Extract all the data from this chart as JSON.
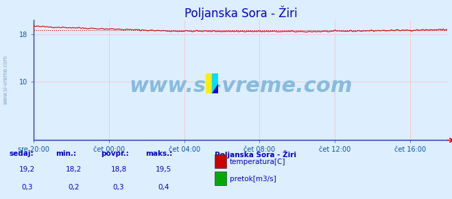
{
  "title": "Poljanska Sora - Žiri",
  "background_color": "#ddeeff",
  "plot_bg_color": "#ddeeff",
  "x_ticks_labels": [
    "sre 20:00",
    "čet 00:00",
    "čet 04:00",
    "čet 08:00",
    "čet 12:00",
    "čet 16:00"
  ],
  "x_ticks_pos": [
    0,
    4,
    8,
    12,
    16,
    20
  ],
  "ylim_left": [
    0,
    20.5
  ],
  "xlim": [
    0,
    22
  ],
  "temp_color": "#cc0000",
  "flow_color": "#00aa00",
  "avg_line_color": "#cc0000",
  "grid_color": "#ffbbbb",
  "watermark_text": "www.si-vreme.com",
  "watermark_color": "#88bbdd",
  "watermark_fontsize": 22,
  "title_color": "#0000cc",
  "title_fontsize": 12,
  "axis_tick_color": "#0055aa",
  "info_color": "#0000cc",
  "legend_title": "Poljanska Sora - Žiri",
  "legend_labels": [
    "temperatura[C]",
    "pretok[m3/s]"
  ],
  "legend_colors": [
    "#cc0000",
    "#00aa00"
  ],
  "stats_labels": [
    "sedaj:",
    "min.:",
    "povpr.:",
    "maks.:"
  ],
  "stats_temp": [
    "19,2",
    "18,2",
    "18,8",
    "19,5"
  ],
  "stats_flow": [
    "0,3",
    "0,2",
    "0,3",
    "0,4"
  ],
  "temp_avg": 18.8,
  "temp_min": 18.2,
  "temp_max": 19.5,
  "flow_avg": 0.3,
  "flow_min": 0.2,
  "flow_max": 0.4,
  "n_points": 288,
  "y_tick_vals": [
    10,
    18
  ],
  "y_tick_labels": [
    "10",
    "18"
  ]
}
